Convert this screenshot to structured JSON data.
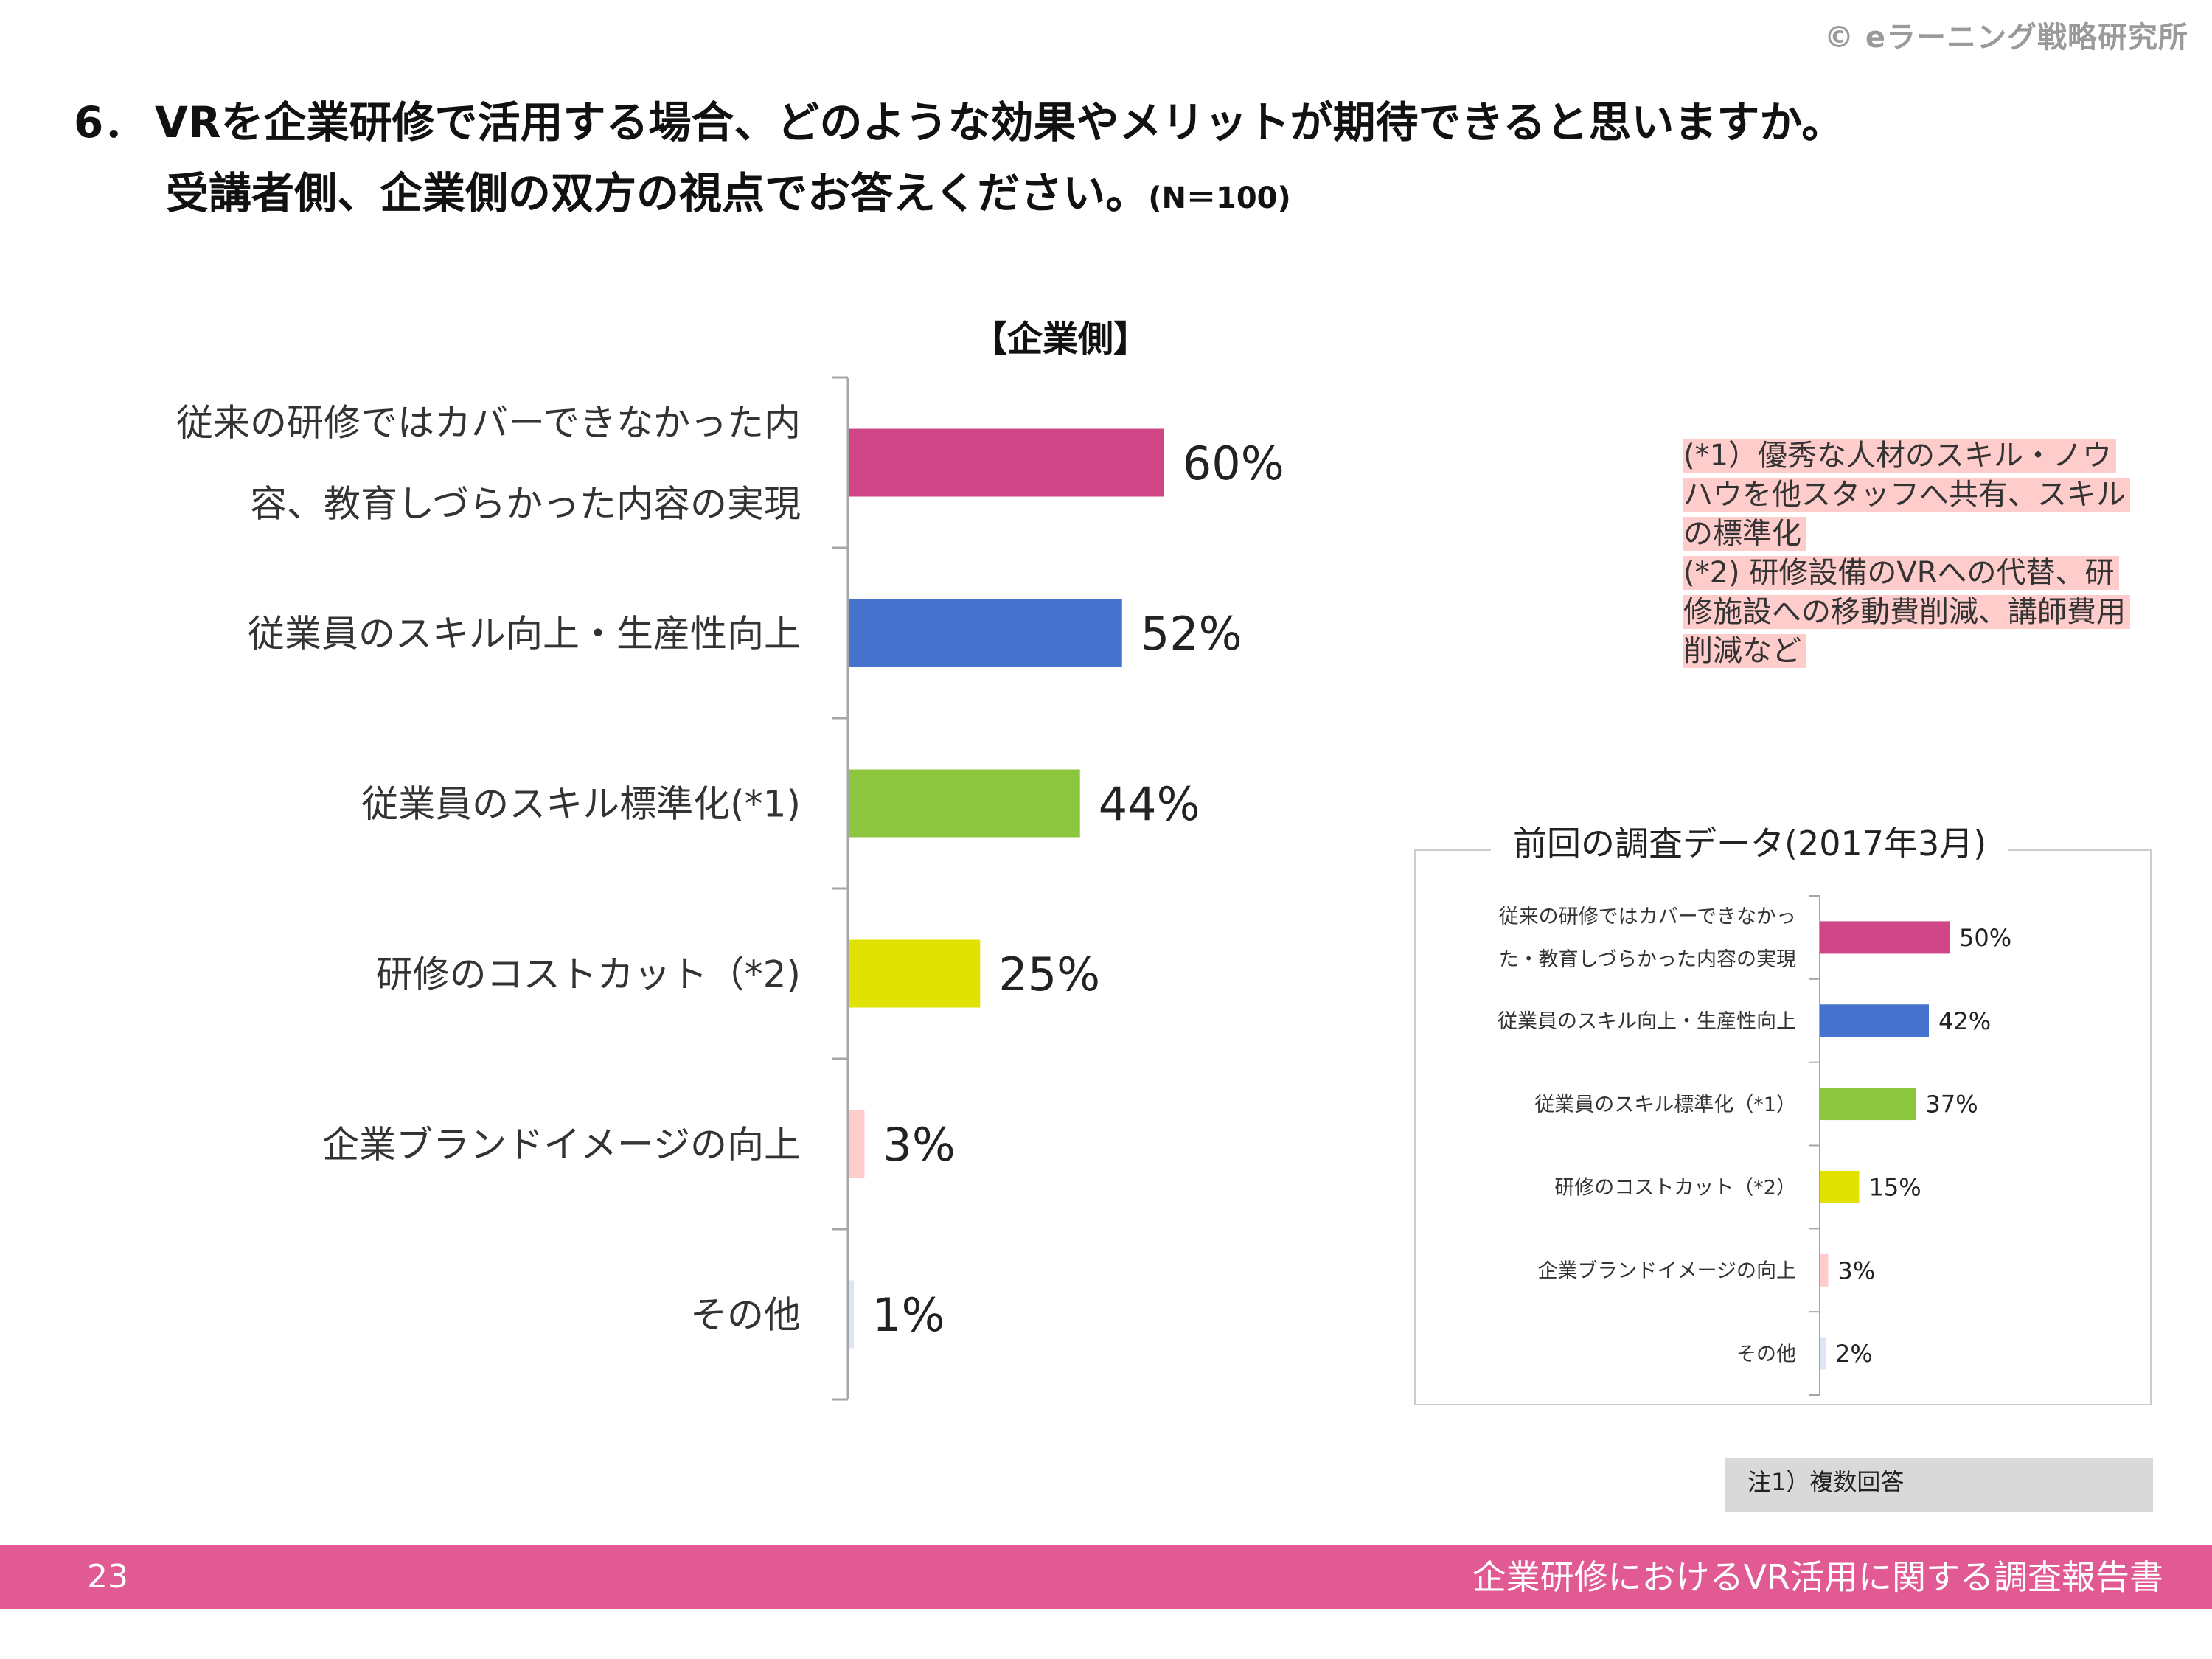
{
  "header": {
    "copyright": "© eラーニング戦略研究所",
    "title_num": "6．",
    "title_line1": "VRを企業研修で活用する場合、どのような効果やメリットが期待できると思いますか。",
    "title_line2": "受講者側、企業側の双方の視点でお答えください。",
    "title_n": "(N＝100)"
  },
  "section_title": "【企業側】",
  "chart_data": [
    {
      "type": "bar",
      "orientation": "horizontal",
      "title": "【企業側】",
      "categories": [
        [
          "従来の研修ではカバーできなかった内",
          "容、教育しづらかった内容の実現"
        ],
        [
          "従業員のスキル向上・生産性向上"
        ],
        [
          "従業員のスキル標準化(*1)"
        ],
        [
          "研修のコストカット（*2)"
        ],
        [
          "企業ブランドイメージの向上"
        ],
        [
          "その他"
        ]
      ],
      "values": [
        60,
        52,
        44,
        25,
        3,
        1
      ],
      "value_labels": [
        "60%",
        "52%",
        "44%",
        "25%",
        "3%",
        "1%"
      ],
      "colors": [
        "#cf4686",
        "#4472cc",
        "#8cc63f",
        "#e2e200",
        "#ffcccc",
        "#dde6f4"
      ],
      "xlim": [
        0,
        100
      ],
      "unit": "%"
    },
    {
      "type": "bar",
      "orientation": "horizontal",
      "title": "前回の調査データ(2017年3月)",
      "categories": [
        [
          "従来の研修ではカバーできなかっ",
          "た・教育しづらかった内容の実現"
        ],
        [
          "従業員のスキル向上・生産性向上"
        ],
        [
          "従業員のスキル標準化（*1）"
        ],
        [
          "研修のコストカット（*2）"
        ],
        [
          "企業ブランドイメージの向上"
        ],
        [
          "その他"
        ]
      ],
      "values": [
        50,
        42,
        37,
        15,
        3,
        2
      ],
      "value_labels": [
        "50%",
        "42%",
        "37%",
        "15%",
        "3%",
        "2%"
      ],
      "colors": [
        "#cf4686",
        "#4472cc",
        "#8cc63f",
        "#e2e200",
        "#ffcccc",
        "#dde6f4"
      ],
      "xlim": [
        0,
        100
      ],
      "unit": "%"
    }
  ],
  "notes": {
    "n1": "(*1）優秀な人材のスキル・ノウハウを他スタッフへ共有、スキルの標準化",
    "n2": "(*2) 研修設備のVRへの代替、研修施設への移動費削減、講師費用削減など"
  },
  "footnote": "注1）複数回答",
  "footer": {
    "page": "23",
    "report_title": "企業研修におけるVR活用に関する調査報告書"
  }
}
